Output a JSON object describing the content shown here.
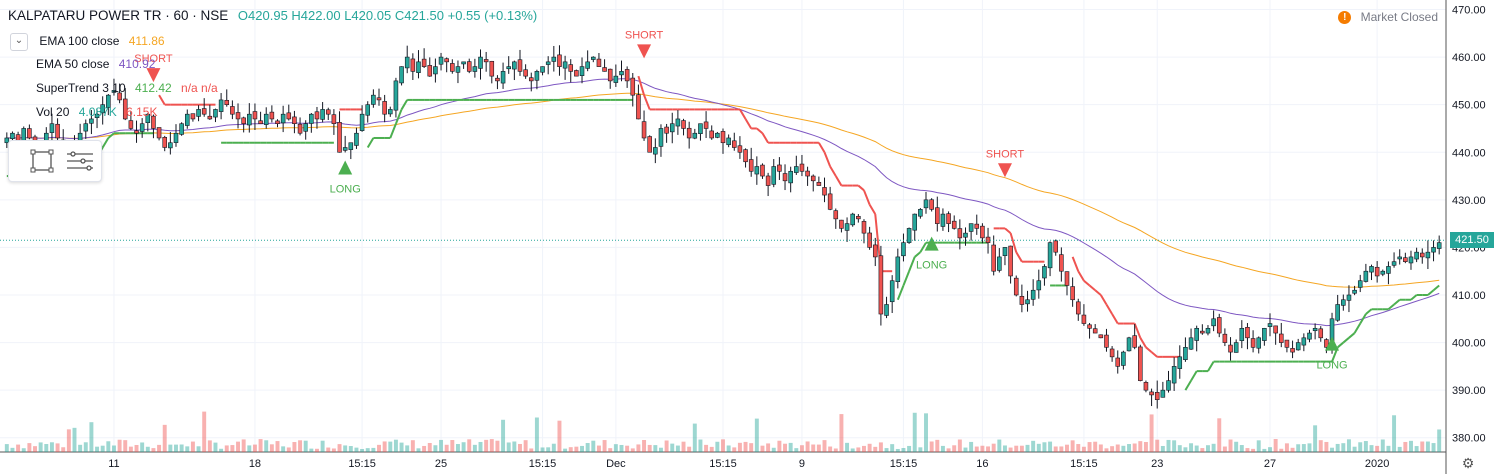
{
  "header": {
    "symbol": "KALPATARU POWER TR · 60 · NSE",
    "open": "O420.95",
    "high": "H422.00",
    "low": "L420.05",
    "close": "C421.50",
    "change": "+0.55 (+0.13%)"
  },
  "indicators": [
    {
      "label": "EMA 100 close",
      "value": "411.86",
      "color": "#f5a623"
    },
    {
      "label": "EMA 50 close",
      "value": "410.92",
      "color": "#7e57c2"
    },
    {
      "label": "SuperTrend 3 10",
      "value": "412.42",
      "extra": "n/a  n/a",
      "color": "#4caf50"
    },
    {
      "label": "Vol 20",
      "value": "4.087K",
      "extra": "6.15K",
      "color": "#26a69a"
    }
  ],
  "status": {
    "market": "Market Closed",
    "icon": "!"
  },
  "last_price_label": "421.50",
  "signals": [
    {
      "text": "SHORT",
      "x_index": 26,
      "price": 456,
      "dir": "short"
    },
    {
      "text": "LONG",
      "x_index": 60,
      "price": 437,
      "dir": "long"
    },
    {
      "text": "SHORT",
      "x_index": 113,
      "price": 461,
      "dir": "short"
    },
    {
      "text": "LONG",
      "x_index": 164,
      "price": 421,
      "dir": "long"
    },
    {
      "text": "SHORT",
      "x_index": 177,
      "price": 436,
      "dir": "short"
    },
    {
      "text": "LONG",
      "x_index": 235,
      "price": 400,
      "dir": "long"
    }
  ],
  "colors": {
    "up": "#26a69a",
    "down": "#ef5350",
    "ema100": "#f5a623",
    "ema50": "#7e57c2",
    "st_up": "#4caf50",
    "st_down": "#ef5350",
    "grid": "#f0f3fa",
    "axis_text": "#131722"
  },
  "chart_data": {
    "type": "candlestick",
    "ylim": [
      377,
      472
    ],
    "y_ticks": [
      380,
      390,
      400,
      410,
      420,
      430,
      440,
      450,
      460,
      470
    ],
    "x_ticks": [
      {
        "i": 19,
        "label": "11"
      },
      {
        "i": 44,
        "label": "18"
      },
      {
        "i": 63,
        "label": "15:15"
      },
      {
        "i": 77,
        "label": "25"
      },
      {
        "i": 95,
        "label": "15:15"
      },
      {
        "i": 108,
        "label": "Dec"
      },
      {
        "i": 127,
        "label": "15:15"
      },
      {
        "i": 141,
        "label": "9"
      },
      {
        "i": 159,
        "label": "15:15"
      },
      {
        "i": 173,
        "label": "16"
      },
      {
        "i": 191,
        "label": "15:15"
      },
      {
        "i": 204,
        "label": "23"
      },
      {
        "i": 224,
        "label": "27"
      },
      {
        "i": 243,
        "label": "2020"
      }
    ],
    "closes": [
      443,
      444,
      442,
      445,
      443,
      441,
      442,
      444,
      446,
      443,
      441,
      440,
      442,
      444,
      446,
      447,
      448,
      450,
      452,
      453,
      451,
      447,
      445,
      444,
      446,
      448,
      445,
      443,
      441,
      442,
      444,
      446,
      448,
      447,
      449,
      448,
      447,
      449,
      451,
      450,
      448,
      447,
      446,
      448,
      447,
      446,
      448,
      447,
      446,
      448,
      447,
      446,
      444,
      446,
      448,
      447,
      449,
      448,
      446,
      440,
      441,
      442,
      444,
      448,
      450,
      452,
      451,
      448,
      449,
      455,
      458,
      460,
      457,
      459,
      458,
      456,
      458,
      460,
      459,
      457,
      458,
      459,
      457,
      458,
      460,
      459,
      456,
      455,
      457,
      458,
      459,
      457,
      456,
      455,
      457,
      458,
      459,
      460,
      458,
      459,
      457,
      456,
      458,
      459,
      460,
      458,
      457,
      455,
      456,
      457,
      455,
      452,
      447,
      443,
      440,
      441,
      445,
      444,
      446,
      447,
      445,
      443,
      444,
      446,
      445,
      443,
      444,
      442,
      443,
      441,
      440,
      438,
      436,
      437,
      435,
      433,
      437,
      436,
      434,
      436,
      437,
      436,
      435,
      434,
      433,
      431,
      428,
      426,
      424,
      425,
      427,
      426,
      423,
      420,
      418,
      406,
      408,
      413,
      418,
      421,
      424,
      427,
      428,
      430,
      428,
      425,
      427,
      425,
      424,
      422,
      423,
      425,
      424,
      422,
      421,
      415,
      418,
      420,
      414,
      410,
      408,
      409,
      411,
      413,
      416,
      421,
      419,
      415,
      412,
      409,
      406,
      404,
      403,
      402,
      401,
      399,
      397,
      395,
      398,
      401,
      399,
      392,
      390,
      389,
      388,
      390,
      392,
      395,
      397,
      399,
      401,
      403,
      402,
      403,
      405,
      402,
      400,
      398,
      400,
      403,
      401,
      399,
      401,
      403,
      404,
      402,
      400,
      399,
      398,
      400,
      401,
      402,
      403,
      401,
      399,
      405,
      408,
      409,
      410,
      411,
      413,
      415,
      416,
      414,
      415,
      416,
      417,
      418,
      417,
      418,
      419,
      418,
      419,
      420,
      421
    ]
  }
}
